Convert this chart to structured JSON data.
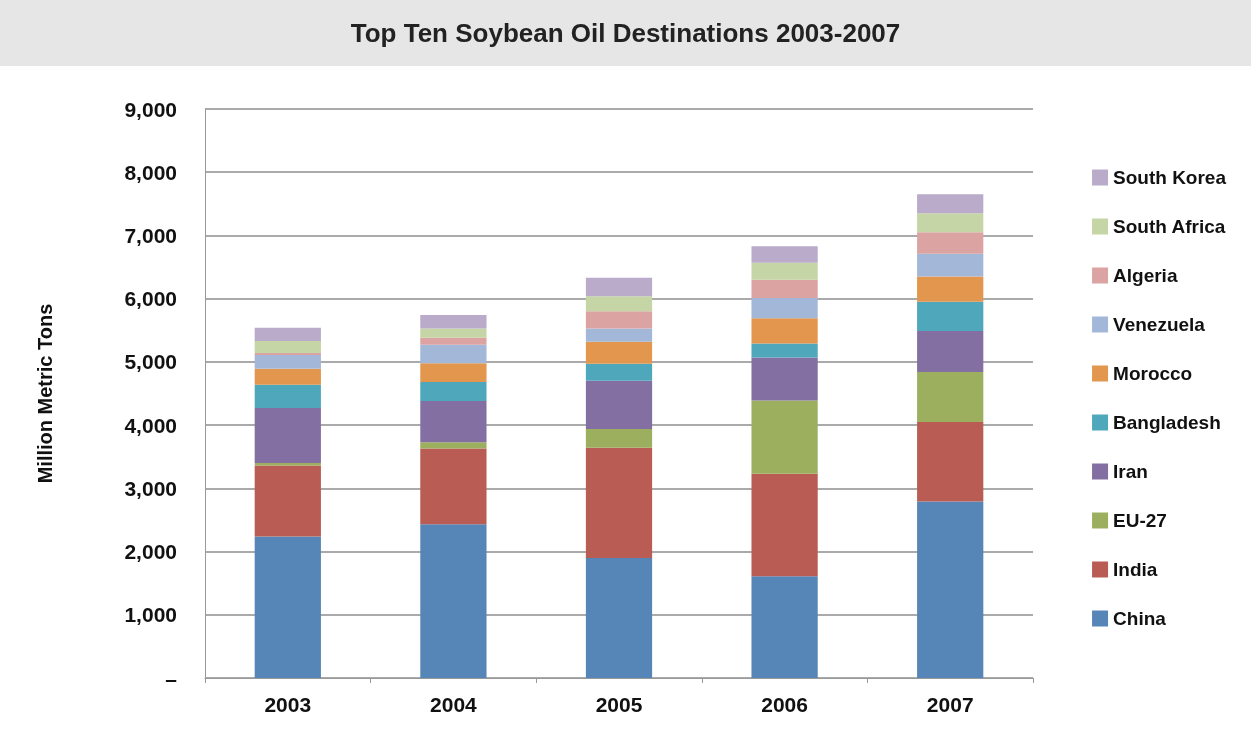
{
  "chart_data": {
    "type": "bar",
    "title": "Top Ten Soybean Oil Destinations 2003-2007",
    "ylabel": "Million Metric Tons",
    "categories": [
      "2003",
      "2004",
      "2005",
      "2006",
      "2007"
    ],
    "stacked": true,
    "grid": "y",
    "legend": "right",
    "ylim": [
      0,
      9000
    ],
    "yticks": [
      {
        "value": 0,
        "label": "–"
      },
      {
        "value": 1000,
        "label": "1,000"
      },
      {
        "value": 2000,
        "label": "2,000"
      },
      {
        "value": 3000,
        "label": "3,000"
      },
      {
        "value": 4000,
        "label": "4,000"
      },
      {
        "value": 5000,
        "label": "5,000"
      },
      {
        "value": 6000,
        "label": "6,000"
      },
      {
        "value": 7000,
        "label": "7,000"
      },
      {
        "value": 8000,
        "label": "8,000"
      },
      {
        "value": 9000,
        "label": "9,000"
      }
    ],
    "series": [
      {
        "name": "China",
        "color": "#5685b8",
        "values": [
          2240,
          2430,
          1900,
          1610,
          2790
        ]
      },
      {
        "name": "India",
        "color": "#b85c54",
        "values": [
          1120,
          1200,
          1740,
          1620,
          1260
        ]
      },
      {
        "name": "EU-27",
        "color": "#9caf5f",
        "values": [
          40,
          100,
          300,
          1160,
          790
        ]
      },
      {
        "name": "Iran",
        "color": "#836fa1",
        "values": [
          870,
          650,
          760,
          680,
          650
        ]
      },
      {
        "name": "Bangladesh",
        "color": "#4fa7bc",
        "values": [
          370,
          300,
          270,
          220,
          460
        ]
      },
      {
        "name": "Morocco",
        "color": "#e2964e",
        "values": [
          250,
          300,
          350,
          400,
          400
        ]
      },
      {
        "name": "Venezuela",
        "color": "#a3b7d8",
        "values": [
          220,
          290,
          210,
          320,
          360
        ]
      },
      {
        "name": "Algeria",
        "color": "#dba3a2",
        "values": [
          30,
          110,
          270,
          290,
          340
        ]
      },
      {
        "name": "South Africa",
        "color": "#c5d5a5",
        "values": [
          190,
          150,
          240,
          270,
          300
        ]
      },
      {
        "name": "South Korea",
        "color": "#b9abc9",
        "values": [
          210,
          210,
          290,
          260,
          300
        ]
      }
    ]
  }
}
